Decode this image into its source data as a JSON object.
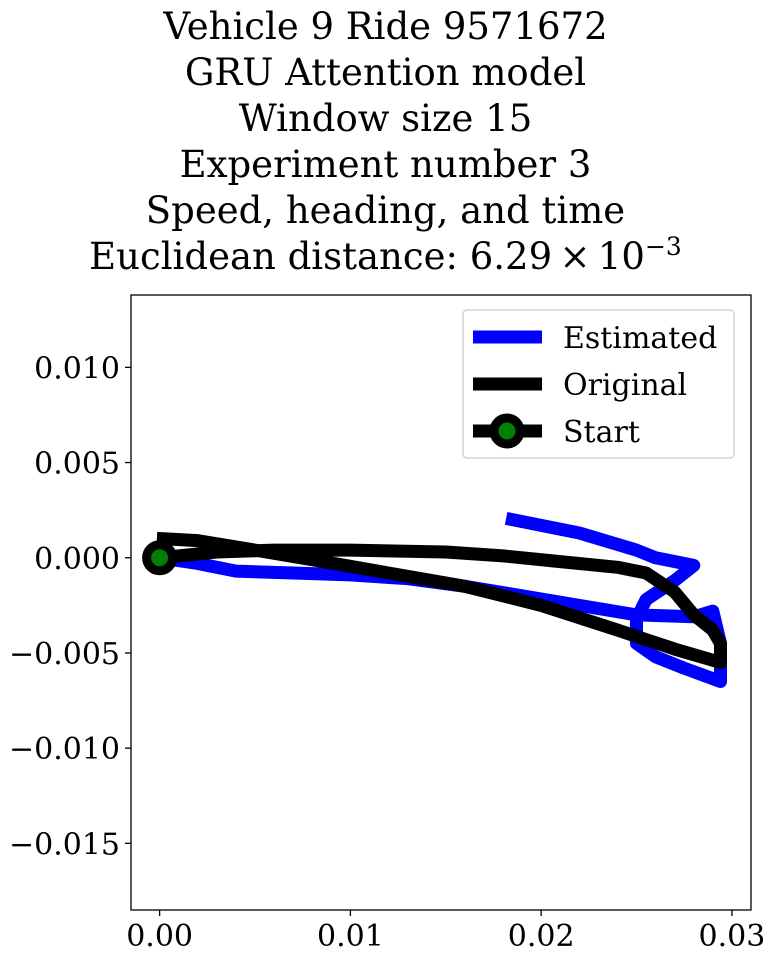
{
  "title_lines": [
    "Vehicle 9 Ride 9571672",
    "GRU Attention model",
    "Window size 15",
    "Experiment number 3",
    "Speed, heading, and time"
  ],
  "title_distance": {
    "prefix": "Euclidean distance: 6.29 × 10",
    "exponent": "−3"
  },
  "chart_data": {
    "type": "line",
    "xlim": [
      -0.0015,
      0.031
    ],
    "ylim": [
      -0.0185,
      0.0138
    ],
    "xticks": [
      0.0,
      0.01,
      0.02,
      0.03
    ],
    "xtick_labels": [
      "0.00",
      "0.01",
      "0.02",
      "0.03"
    ],
    "yticks": [
      0.01,
      0.005,
      0.0,
      -0.005,
      -0.01,
      -0.015
    ],
    "ytick_labels": [
      "0.010",
      "0.005",
      "0.000",
      "−0.005",
      "−0.010",
      "−0.015"
    ],
    "grid": false,
    "legend_position": "top-right",
    "series": [
      {
        "name": "Estimated",
        "color": "#0000ff",
        "points": [
          [
            0.0,
            0.0
          ],
          [
            0.002,
            -0.0003
          ],
          [
            0.004,
            -0.0007
          ],
          [
            0.007,
            -0.0008
          ],
          [
            0.01,
            -0.0009
          ],
          [
            0.013,
            -0.0011
          ],
          [
            0.016,
            -0.0015
          ],
          [
            0.019,
            -0.002
          ],
          [
            0.022,
            -0.0025
          ],
          [
            0.025,
            -0.003
          ],
          [
            0.028,
            -0.0031
          ],
          [
            0.029,
            -0.0028
          ],
          [
            0.0294,
            -0.0045
          ],
          [
            0.0294,
            -0.0065
          ],
          [
            0.0275,
            -0.0058
          ],
          [
            0.026,
            -0.0052
          ],
          [
            0.025,
            -0.0045
          ],
          [
            0.025,
            -0.0032
          ],
          [
            0.0255,
            -0.0022
          ],
          [
            0.027,
            -0.0012
          ],
          [
            0.028,
            -0.0004
          ],
          [
            0.026,
            0.0
          ],
          [
            0.025,
            0.0004
          ],
          [
            0.022,
            0.0013
          ],
          [
            0.0185,
            0.002
          ]
        ]
      },
      {
        "name": "Original",
        "color": "#000000",
        "points": [
          [
            0.0,
            0.0
          ],
          [
            0.003,
            0.0003
          ],
          [
            0.006,
            0.0004
          ],
          [
            0.01,
            0.0004
          ],
          [
            0.015,
            0.0003
          ],
          [
            0.018,
            0.0001
          ],
          [
            0.021,
            -0.0002
          ],
          [
            0.024,
            -0.0005
          ],
          [
            0.0255,
            -0.0008
          ],
          [
            0.027,
            -0.0018
          ],
          [
            0.028,
            -0.003
          ],
          [
            0.029,
            -0.0038
          ],
          [
            0.0294,
            -0.0045
          ],
          [
            0.0294,
            -0.0055
          ],
          [
            0.027,
            -0.0048
          ],
          [
            0.024,
            -0.0038
          ],
          [
            0.02,
            -0.0025
          ],
          [
            0.016,
            -0.0015
          ],
          [
            0.012,
            -0.0008
          ],
          [
            0.008,
            -0.0001
          ],
          [
            0.005,
            0.0004
          ],
          [
            0.002,
            0.0009
          ],
          [
            0.0002,
            0.001
          ]
        ]
      }
    ],
    "start_marker": {
      "name": "Start",
      "point": [
        0.0,
        0.0
      ],
      "edge_color": "#000000",
      "face_color": "#008000"
    }
  }
}
